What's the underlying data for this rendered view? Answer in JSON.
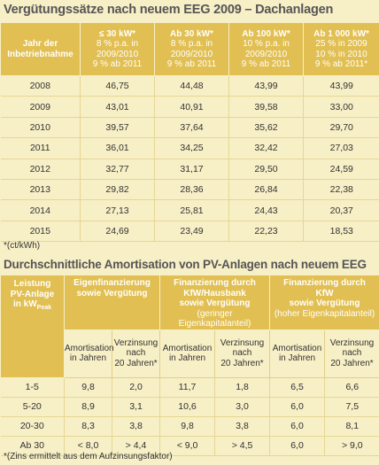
{
  "title1": "Vergütungssätze nach neuem EEG 2009 – Dachanlagen",
  "table1": {
    "headers": [
      [
        "Jahr der",
        "Inbetriebnahme"
      ],
      [
        "≤ 30 kW*",
        "8 % p.a. in",
        "2009/2010",
        "9 % ab 2011"
      ],
      [
        "Ab 30 kW*",
        "8 % p.a. in",
        "2009/2010",
        "9 % ab 2011"
      ],
      [
        "Ab 100 kW*",
        "10 % p.a. in",
        "2009/2010",
        "9 % ab 2011"
      ],
      [
        "Ab 1 000 kW*",
        "25 % in 2009",
        "10 % in 2010",
        "9 % ab 2011*"
      ]
    ],
    "rows": [
      [
        "2008",
        "46,75",
        "44,48",
        "43,99",
        "43,99"
      ],
      [
        "2009",
        "43,01",
        "40,91",
        "39,58",
        "33,00"
      ],
      [
        "2010",
        "39,57",
        "37,64",
        "35,62",
        "29,70"
      ],
      [
        "2011",
        "36,01",
        "34,25",
        "32,42",
        "27,03"
      ],
      [
        "2012",
        "32,77",
        "31,17",
        "29,50",
        "24,59"
      ],
      [
        "2013",
        "29,82",
        "28,36",
        "26,84",
        "22,38"
      ],
      [
        "2014",
        "27,13",
        "25,81",
        "24,43",
        "20,37"
      ],
      [
        "2015",
        "24,69",
        "23,49",
        "22,23",
        "18,53"
      ]
    ]
  },
  "note1": "*(ct/kWh)",
  "title2": "Durchschnittliche Amortisation von PV-Anlagen nach neuem EEG",
  "table2": {
    "first_header": {
      "lines": [
        "Leistung",
        "PV-Anlage"
      ],
      "unit": "in kW",
      "sub": "Peak"
    },
    "groups": [
      [
        "Eigenfinanzierung",
        "sowie Vergütung"
      ],
      [
        "Finanzierung durch",
        "KfW/Hausbank",
        "sowie Vergütung",
        "(geringer Eigenkapitalanteil)"
      ],
      [
        "Finanzierung durch",
        "KfW",
        "sowie Vergütung",
        "(hoher Eigenkapitalanteil)"
      ]
    ],
    "subheaders": [
      [
        "Amortisation",
        "in Jahren"
      ],
      [
        "Verzinsung",
        "nach",
        "20 Jahren*"
      ],
      [
        "Amortisation",
        "in Jahren"
      ],
      [
        "Verzinsung",
        "nach",
        "20 Jahren*"
      ],
      [
        "Amortisation",
        "in Jahren"
      ],
      [
        "Verzinsung",
        "nach",
        "20 Jahren*"
      ]
    ],
    "rows": [
      [
        "1-5",
        "9,8",
        "2,0",
        "11,7",
        "1,8",
        "6,5",
        "6,6"
      ],
      [
        "5-20",
        "8,9",
        "3,1",
        "10,6",
        "3,0",
        "6,0",
        "7,5"
      ],
      [
        "20-30",
        "8,3",
        "3,8",
        "9,8",
        "3,8",
        "6,0",
        "8,1"
      ],
      [
        "Ab 30",
        "< 8,0",
        "> 4,4",
        "< 9,0",
        "> 4,5",
        "6,0",
        "> 9,0"
      ]
    ]
  },
  "note2": "*(Zins ermittelt aus dem Aufzinsungsfaktor)"
}
